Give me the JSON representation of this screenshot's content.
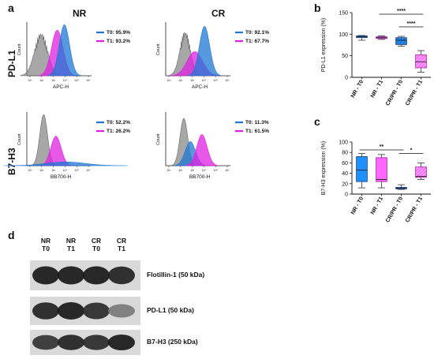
{
  "panel_labels": {
    "a": "a",
    "b": "b",
    "c": "c",
    "d": "d"
  },
  "column_titles": {
    "nr": "NR",
    "cr": "CR"
  },
  "row_titles": {
    "pdl1": "PD-L1",
    "b7h3": "B7-H3"
  },
  "flow": {
    "count_label": "Count",
    "tick_labels": [
      "10³",
      "10²",
      "10³",
      "10⁴",
      "10⁵",
      "10⁶"
    ],
    "plots": [
      {
        "id": "pdl1-nr",
        "xlabel": "APC-H",
        "t0": "T0: 95.9%",
        "t1": "T1: 93.2%"
      },
      {
        "id": "pdl1-cr",
        "xlabel": "APC-H",
        "t0": "T0: 92.1%",
        "t1": "T1: 67.7%"
      },
      {
        "id": "b7h3-nr",
        "xlabel": "BB700-H",
        "t0": "T0: 52.2%",
        "t1": "T1: 26.2%"
      },
      {
        "id": "b7h3-cr",
        "xlabel": "BB700-H",
        "t0": "T0: 11.3%",
        "t1": "T1: 61.5%"
      }
    ]
  },
  "colors": {
    "t0": "#1f77d4",
    "t1": "#e020e0",
    "iso": "#8a8a8a",
    "box_t0": "#1e90ff",
    "box_t1": "#ff66ff"
  },
  "chart_data": [
    {
      "type": "box",
      "panel": "b",
      "ylabel": "PD-L1 expression (%)",
      "ylim": [
        0,
        150
      ],
      "yticks": [
        "0",
        "50",
        "100",
        "150"
      ],
      "categories": [
        "NR - T0",
        "NR - T1",
        "CR/PR - T0",
        "CR/PR - T1"
      ],
      "boxes": [
        {
          "min": 86,
          "q1": 92,
          "median": 94,
          "q3": 96,
          "max": 97
        },
        {
          "min": 88,
          "q1": 90,
          "median": 92,
          "q3": 94,
          "max": 96
        },
        {
          "min": 72,
          "q1": 76,
          "median": 86,
          "q3": 92,
          "max": 95
        },
        {
          "min": 12,
          "q1": 22,
          "median": 36,
          "q3": 52,
          "max": 62
        }
      ],
      "significance": [
        {
          "from": 1,
          "to": 3,
          "label": "****"
        },
        {
          "from": 2,
          "to": 3,
          "label": "****"
        }
      ]
    },
    {
      "type": "box",
      "panel": "c",
      "ylabel": "B7-H3 expression (%)",
      "ylim": [
        0,
        100
      ],
      "yticks": [
        "0",
        "20",
        "40",
        "60",
        "80",
        "100"
      ],
      "categories": [
        "NR - T0",
        "NR - T1",
        "CR/PR - T0",
        "CR/PR - T1"
      ],
      "boxes": [
        {
          "min": 12,
          "q1": 24,
          "median": 46,
          "q3": 72,
          "max": 78
        },
        {
          "min": 12,
          "q1": 24,
          "median": 28,
          "q3": 70,
          "max": 76
        },
        {
          "min": 9,
          "q1": 10,
          "median": 11,
          "q3": 13,
          "max": 18
        },
        {
          "min": 28,
          "q1": 32,
          "median": 34,
          "q3": 52,
          "max": 60
        }
      ],
      "significance": [
        {
          "from": 0,
          "to": 2,
          "label": "**"
        },
        {
          "from": 2,
          "to": 3,
          "label": "*"
        }
      ]
    }
  ],
  "western_blot": {
    "lanes": [
      {
        "l1": "NR",
        "l2": "T0"
      },
      {
        "l1": "NR",
        "l2": "T1"
      },
      {
        "l1": "CR",
        "l2": "T0"
      },
      {
        "l1": "CR",
        "l2": "T1"
      }
    ],
    "blots": [
      {
        "label": "Flotillin-1 (50 kDa)",
        "intensity": [
          1.0,
          1.0,
          1.0,
          0.95
        ]
      },
      {
        "label": "PD-L1 (50 kDa)",
        "intensity": [
          0.95,
          1.0,
          0.9,
          0.45
        ]
      },
      {
        "label": "B7-H3 (250 kDa)",
        "intensity": [
          0.85,
          0.95,
          0.9,
          1.0
        ]
      }
    ]
  }
}
